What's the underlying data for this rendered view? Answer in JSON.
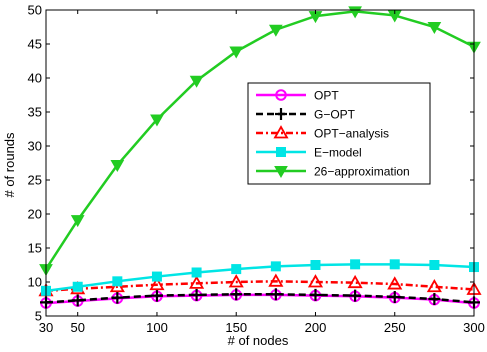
{
  "chart_data": {
    "type": "line",
    "title": "",
    "xlabel": "# of nodes",
    "ylabel": "# of rounds",
    "xlim": [
      30,
      300
    ],
    "ylim": [
      5,
      50
    ],
    "xticks": [
      30,
      50,
      100,
      150,
      200,
      250,
      300
    ],
    "yticks": [
      5,
      10,
      15,
      20,
      25,
      30,
      35,
      40,
      45,
      50
    ],
    "grid": false,
    "legend_position": "center-right",
    "x": [
      30,
      50,
      75,
      100,
      125,
      150,
      175,
      200,
      225,
      250,
      275,
      300
    ],
    "series": [
      {
        "name": "OPT",
        "color": "#ff00ff",
        "line_style": "solid",
        "marker": "circle",
        "values": [
          6.9,
          7.2,
          7.6,
          7.9,
          8.0,
          8.1,
          8.1,
          8.0,
          7.9,
          7.7,
          7.4,
          6.9
        ]
      },
      {
        "name": "G−OPT",
        "color": "#000000",
        "line_style": "dashed",
        "marker": "plus",
        "values": [
          7.0,
          7.3,
          7.7,
          8.0,
          8.1,
          8.2,
          8.2,
          8.1,
          8.0,
          7.8,
          7.5,
          7.0
        ]
      },
      {
        "name": "OPT−analysis",
        "color": "#ff0000",
        "line_style": "dashdot",
        "marker": "triangle-up",
        "values": [
          8.7,
          9.0,
          9.3,
          9.6,
          9.8,
          10.0,
          10.1,
          10.0,
          9.9,
          9.7,
          9.3,
          8.9
        ]
      },
      {
        "name": "E−model",
        "color": "#00e5e5",
        "line_style": "solid",
        "marker": "square",
        "values": [
          8.7,
          9.3,
          10.1,
          10.8,
          11.4,
          11.9,
          12.3,
          12.5,
          12.6,
          12.6,
          12.5,
          12.2
        ]
      },
      {
        "name": "26−approximation",
        "color": "#22cc22",
        "line_style": "solid",
        "marker": "triangle-down",
        "values": [
          11.9,
          19.1,
          27.2,
          33.9,
          39.6,
          43.9,
          47.1,
          49.1,
          49.8,
          49.2,
          47.5,
          44.6
        ]
      }
    ]
  }
}
